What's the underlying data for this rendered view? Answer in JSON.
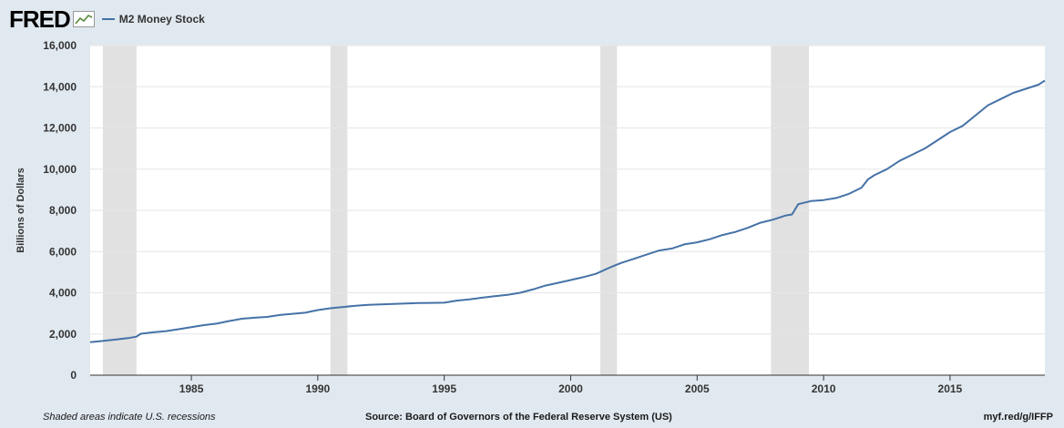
{
  "brand": {
    "name": "FRED"
  },
  "chart_data": {
    "type": "line",
    "title": "",
    "xlabel": "",
    "ylabel": "Billions of Dollars",
    "ylim": [
      0,
      16000
    ],
    "xlim": [
      1981.0,
      2018.75
    ],
    "yticks": [
      0,
      2000,
      4000,
      6000,
      8000,
      10000,
      12000,
      14000,
      16000
    ],
    "ytick_labels": [
      "0",
      "2,000",
      "4,000",
      "6,000",
      "8,000",
      "10,000",
      "12,000",
      "14,000",
      "16,000"
    ],
    "xticks": [
      1985,
      1990,
      1995,
      2000,
      2005,
      2010,
      2015
    ],
    "xtick_labels": [
      "1985",
      "1990",
      "1995",
      "2000",
      "2005",
      "2010",
      "2015"
    ],
    "grid": "horizontal",
    "legend": "top-left",
    "recessions": [
      [
        1981.5,
        1982.83
      ],
      [
        1990.5,
        1991.17
      ],
      [
        2001.17,
        2001.83
      ],
      [
        2007.92,
        2009.42
      ]
    ],
    "series": [
      {
        "name": "M2 Money Stock",
        "color": "#4572a7",
        "x": [
          1981.0,
          1981.5,
          1982.0,
          1982.5,
          1982.83,
          1983.0,
          1983.5,
          1984.0,
          1984.5,
          1985.0,
          1985.5,
          1986.0,
          1986.5,
          1987.0,
          1987.5,
          1988.0,
          1988.5,
          1989.0,
          1989.5,
          1990.0,
          1990.5,
          1991.0,
          1991.5,
          1992.0,
          1992.5,
          1993.0,
          1993.5,
          1994.0,
          1994.5,
          1995.0,
          1995.5,
          1996.0,
          1996.5,
          1997.0,
          1997.5,
          1998.0,
          1998.5,
          1999.0,
          1999.5,
          2000.0,
          2000.5,
          2001.0,
          2001.5,
          2001.75,
          2002.0,
          2002.5,
          2003.0,
          2003.5,
          2004.0,
          2004.5,
          2005.0,
          2005.5,
          2006.0,
          2006.5,
          2007.0,
          2007.5,
          2008.0,
          2008.5,
          2008.75,
          2009.0,
          2009.5,
          2010.0,
          2010.5,
          2011.0,
          2011.5,
          2011.75,
          2012.0,
          2012.5,
          2013.0,
          2013.5,
          2014.0,
          2014.5,
          2015.0,
          2015.5,
          2016.0,
          2016.5,
          2017.0,
          2017.5,
          2018.0,
          2018.5,
          2018.75
        ],
        "values": [
          1600,
          1660,
          1730,
          1800,
          1870,
          2010,
          2080,
          2140,
          2230,
          2330,
          2430,
          2500,
          2630,
          2740,
          2790,
          2830,
          2920,
          2980,
          3030,
          3160,
          3250,
          3310,
          3370,
          3410,
          3440,
          3460,
          3480,
          3500,
          3510,
          3520,
          3620,
          3680,
          3760,
          3830,
          3900,
          4000,
          4160,
          4350,
          4480,
          4620,
          4760,
          4920,
          5200,
          5330,
          5450,
          5650,
          5850,
          6050,
          6150,
          6350,
          6450,
          6600,
          6800,
          6950,
          7150,
          7400,
          7550,
          7750,
          7800,
          8300,
          8450,
          8500,
          8600,
          8800,
          9100,
          9500,
          9700,
          10000,
          10400,
          10700,
          11000,
          11400,
          11800,
          12100,
          12600,
          13100,
          13400,
          13700,
          13900,
          14100,
          14300
        ]
      }
    ]
  },
  "footer": {
    "left": "Shaded areas indicate U.S. recessions",
    "center": "Source: Board of Governors of the Federal Reserve System (US)",
    "right": "myf.red/g/IFFP"
  }
}
